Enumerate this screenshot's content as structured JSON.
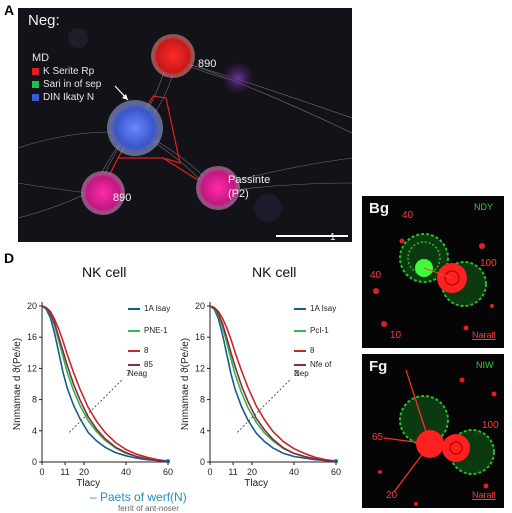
{
  "panel_letters": {
    "a": "A",
    "d": "D"
  },
  "panel_a": {
    "title": "Neg:",
    "legend_head": "MD",
    "legend": [
      {
        "label": "K Serite Rp",
        "color": "#e02020"
      },
      {
        "label": "Sari in of sep",
        "color": "#22c040"
      },
      {
        "label": "DIN Ikaty N",
        "color": "#3a5ad0"
      }
    ],
    "labels": {
      "top_right": "890",
      "bottom_left": "890",
      "right_name": "Passinte",
      "right_sub": "(P2)"
    },
    "scale_label": "1"
  },
  "panel_bg": {
    "title": "Bg",
    "tag": "NDY",
    "numbers": {
      "top_left": "40",
      "left": "40",
      "right": "100",
      "bottom_left": "10"
    },
    "footer": "Narall"
  },
  "panel_fg": {
    "title": "Fg",
    "tag": "NIW",
    "numbers": {
      "left": "65",
      "right": "100",
      "bottom": "20"
    },
    "footer": "Narall"
  },
  "x_caption": "– Paets of werf(N)",
  "x_caption_2": "ferrit of ant-noser",
  "chart_data": [
    {
      "type": "line",
      "title": "NK cell",
      "xlabel": "Tlacy",
      "ylabel": "Nnmamae d ϑ(Pe/ie)",
      "xlim": [
        0,
        60
      ],
      "ylim": [
        0,
        20
      ],
      "x_ticks": [
        0,
        11,
        20,
        40,
        60
      ],
      "y_ticks": [
        20,
        16,
        12,
        8,
        4,
        0
      ],
      "annotation": "7",
      "x": [
        0,
        2,
        4,
        6,
        8,
        10,
        12,
        15,
        18,
        22,
        26,
        30,
        35,
        40,
        45,
        50,
        55,
        60
      ],
      "series": [
        {
          "name": "1A Isay",
          "color": "#1a5a8a",
          "values": [
            20,
            19.6,
            18.5,
            16.5,
            14,
            11.5,
            9.5,
            7.3,
            5.6,
            3.8,
            2.7,
            1.9,
            1.2,
            0.8,
            0.5,
            0.3,
            0.2,
            0.1
          ]
        },
        {
          "name": "PNE-1",
          "color": "#2cb84a",
          "values": [
            20,
            19.7,
            18.9,
            17.5,
            15.5,
            13.5,
            11.5,
            9.2,
            7.3,
            5.3,
            3.9,
            2.8,
            1.8,
            1.1,
            0.7,
            0.4,
            0.2,
            0.1
          ]
        },
        {
          "name": "8",
          "color": "#c8282a",
          "values": [
            20,
            19.8,
            19.3,
            18.3,
            17.0,
            15.5,
            13.8,
            11.5,
            9.4,
            7.0,
            5.2,
            3.8,
            2.5,
            1.6,
            1.0,
            0.6,
            0.3,
            0.1
          ]
        },
        {
          "name": "85 Neag",
          "color": "#8a2a40",
          "values": [
            20,
            19.8,
            19.0,
            17.8,
            16.0,
            14.2,
            12.4,
            10.0,
            8.0,
            5.8,
            4.2,
            3.0,
            1.9,
            1.2,
            0.7,
            0.4,
            0.2,
            0.1
          ]
        }
      ]
    },
    {
      "type": "line",
      "title": "NK cell",
      "xlabel": "Tlacy",
      "ylabel": "Nnmamae d ϑ(Pe/ie)",
      "xlim": [
        0,
        60
      ],
      "ylim": [
        0,
        20
      ],
      "x_ticks": [
        0,
        11,
        20,
        40,
        60
      ],
      "y_ticks": [
        20,
        16,
        12,
        8,
        4,
        0
      ],
      "annotation": "2",
      "x": [
        0,
        2,
        4,
        6,
        8,
        10,
        12,
        15,
        18,
        22,
        26,
        30,
        35,
        40,
        45,
        50,
        55,
        60
      ],
      "series": [
        {
          "name": "1A Isay",
          "color": "#1a5a8a",
          "values": [
            20,
            19.6,
            18.4,
            16.3,
            13.8,
            11.3,
            9.3,
            7.1,
            5.4,
            3.7,
            2.6,
            1.8,
            1.1,
            0.7,
            0.5,
            0.3,
            0.2,
            0.1
          ]
        },
        {
          "name": "PcI-1",
          "color": "#2cb84a",
          "values": [
            20,
            19.7,
            18.8,
            17.3,
            15.3,
            13.2,
            11.2,
            8.9,
            7.0,
            5.1,
            3.7,
            2.7,
            1.7,
            1.1,
            0.7,
            0.4,
            0.2,
            0.1
          ]
        },
        {
          "name": "8",
          "color": "#c8282a",
          "values": [
            20,
            19.8,
            19.3,
            18.4,
            17.2,
            15.7,
            14.0,
            11.7,
            9.6,
            7.2,
            5.4,
            3.9,
            2.6,
            1.7,
            1.1,
            0.6,
            0.3,
            0.1
          ]
        },
        {
          "name": "Nfe of Nep",
          "color": "#8a2a40",
          "values": [
            20,
            19.8,
            19.0,
            17.7,
            15.9,
            14.0,
            12.2,
            9.8,
            7.8,
            5.6,
            4.1,
            2.9,
            1.8,
            1.1,
            0.7,
            0.4,
            0.2,
            0.1
          ]
        }
      ]
    }
  ]
}
